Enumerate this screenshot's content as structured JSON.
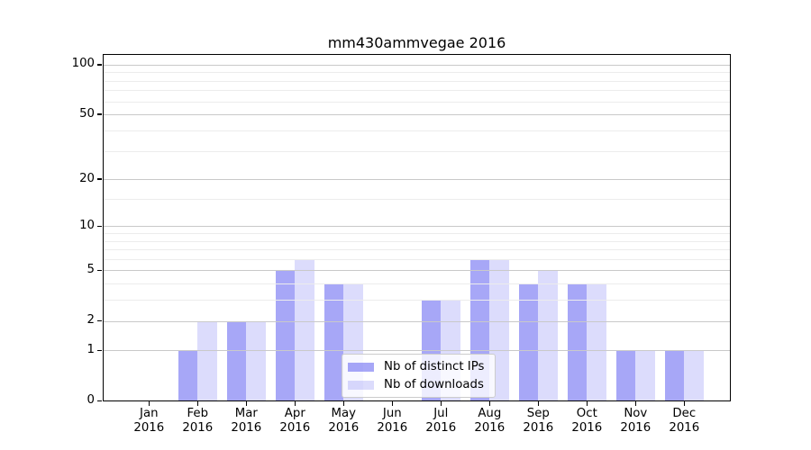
{
  "chart_data": {
    "type": "bar",
    "title": "mm430ammvegae 2016",
    "year": "2016",
    "categories": [
      "Jan",
      "Feb",
      "Mar",
      "Apr",
      "May",
      "Jun",
      "Jul",
      "Aug",
      "Sep",
      "Oct",
      "Nov",
      "Dec"
    ],
    "series": [
      {
        "name": "Nb of distinct IPs",
        "color": "#5050f0",
        "alpha": 0.5,
        "values": [
          0,
          1,
          2,
          5,
          4,
          0,
          3,
          6,
          4,
          4,
          1,
          1
        ]
      },
      {
        "name": "Nb of downloads",
        "color": "#5050f0",
        "alpha": 0.2,
        "values": [
          0,
          2,
          2,
          6,
          4,
          0,
          3,
          6,
          5,
          4,
          1,
          1
        ]
      }
    ],
    "yscale": "log1p",
    "yticks": [
      0,
      1,
      2,
      5,
      10,
      20,
      50,
      100
    ],
    "minor_gridlines": [
      3,
      4,
      6,
      7,
      8,
      9,
      15,
      30,
      40,
      60,
      70,
      80,
      90
    ],
    "ylim": [
      0,
      116
    ],
    "xlabel": "",
    "ylabel": "",
    "grid": "horizontal",
    "legend_position": "lower center",
    "axis_color": "#000000",
    "major_grid_color": "#c9c9c9",
    "minor_grid_color": "#ececec"
  }
}
